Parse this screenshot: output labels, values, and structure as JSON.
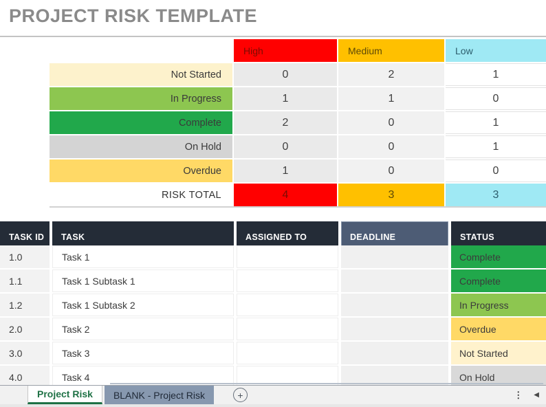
{
  "title": "PROJECT RISK TEMPLATE",
  "risk_matrix": {
    "column_headers": [
      {
        "label": "High",
        "color": "#FF0000"
      },
      {
        "label": "Medium",
        "color": "#FFC000"
      },
      {
        "label": "Low",
        "color": "#9FE9F4"
      }
    ],
    "rows": [
      {
        "label": "Not Started",
        "color": "#FDF2CC",
        "values": [
          0,
          2,
          1
        ]
      },
      {
        "label": "In Progress",
        "color": "#8DC650",
        "values": [
          1,
          1,
          0
        ]
      },
      {
        "label": "Complete",
        "color": "#21A84B",
        "values": [
          2,
          0,
          1
        ]
      },
      {
        "label": "On Hold",
        "color": "#D4D4D4",
        "values": [
          0,
          0,
          1
        ]
      },
      {
        "label": "Overdue",
        "color": "#FFD966",
        "values": [
          1,
          0,
          0
        ]
      }
    ],
    "total_row": {
      "label": "RISK TOTAL",
      "values": [
        4,
        3,
        3
      ]
    }
  },
  "task_table": {
    "headers": {
      "task_id": "TASK ID",
      "task": "TASK",
      "assigned_to": "ASSIGNED TO",
      "deadline": "DEADLINE",
      "status": "STATUS"
    },
    "rows": [
      {
        "task_id": "1.0",
        "task": "Task 1",
        "assigned_to": "",
        "deadline": "",
        "status": "Complete"
      },
      {
        "task_id": "1.1",
        "task": "Task 1 Subtask 1",
        "assigned_to": "",
        "deadline": "",
        "status": "Complete"
      },
      {
        "task_id": "1.2",
        "task": "Task 1 Subtask 2",
        "assigned_to": "",
        "deadline": "",
        "status": "In Progress"
      },
      {
        "task_id": "2.0",
        "task": "Task 2",
        "assigned_to": "",
        "deadline": "",
        "status": "Overdue"
      },
      {
        "task_id": "3.0",
        "task": "Task 3",
        "assigned_to": "",
        "deadline": "",
        "status": "Not Started"
      },
      {
        "task_id": "4.0",
        "task": "Task 4",
        "assigned_to": "",
        "deadline": "",
        "status": "On Hold"
      }
    ],
    "status_colors": {
      "Complete": "#21A84B",
      "In Progress": "#8DC650",
      "Overdue": "#FFD966",
      "Not Started": "#FFF2CC",
      "On Hold": "#D9D9D9"
    }
  },
  "sheet_tabs": {
    "active_tab": "Project Risk",
    "inactive_tab": "BLANK - Project Risk",
    "add_icon": "+",
    "overflow_icon": "⋮",
    "scroll_left_icon": "◀",
    "active_color": "#1E7145"
  }
}
